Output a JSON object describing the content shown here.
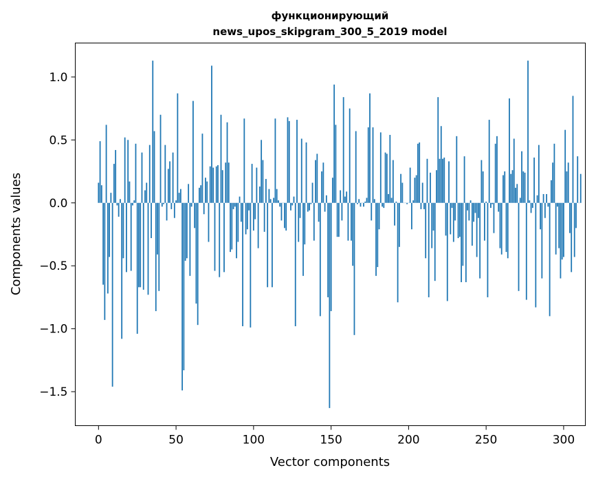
{
  "chart_data": {
    "type": "bar",
    "title_line1": "функционирующий",
    "title_line2": "news_upos_skipgram_300_5_2019 model",
    "xlabel": "Vector components",
    "ylabel": "Components values",
    "xlim": [
      -15,
      314
    ],
    "ylim": [
      -1.77,
      1.27
    ],
    "xticks": [
      0,
      50,
      100,
      150,
      200,
      250,
      300
    ],
    "yticks": [
      -1.5,
      -1.0,
      -0.5,
      0.0,
      0.5,
      1.0
    ],
    "ytick_labels": [
      "−1.5",
      "−1.0",
      "−0.5",
      "0.0",
      "0.5",
      "1.0"
    ],
    "grid": false,
    "bar_color": "#1f77b4",
    "x_start": 0,
    "values": [
      0.16,
      0.49,
      0.14,
      -0.65,
      -0.93,
      0.62,
      -0.72,
      -0.43,
      0.08,
      -1.46,
      0.31,
      0.42,
      -0.02,
      -0.11,
      0.03,
      -1.08,
      -0.44,
      0.52,
      -0.55,
      0.5,
      0.17,
      -0.54,
      -0.02,
      0.02,
      0.47,
      -1.04,
      -0.67,
      -0.67,
      0.4,
      -0.69,
      0.1,
      0.16,
      -0.73,
      0.46,
      -0.28,
      1.13,
      0.57,
      -0.86,
      -0.41,
      -0.7,
      0.7,
      -0.03,
      -0.01,
      0.46,
      -0.14,
      0.27,
      0.33,
      -0.05,
      0.4,
      -0.12,
      0.02,
      0.87,
      0.08,
      0.11,
      -1.49,
      -1.33,
      -0.46,
      -0.44,
      0.15,
      -0.58,
      -0.03,
      0.81,
      -0.2,
      -0.8,
      -0.97,
      0.12,
      0.14,
      0.55,
      -0.09,
      0.2,
      0.17,
      -0.31,
      0.29,
      1.09,
      0.28,
      -0.54,
      0.29,
      0.3,
      -0.59,
      0.7,
      0.26,
      -0.55,
      0.32,
      0.64,
      0.32,
      -0.39,
      -0.37,
      -0.05,
      -0.03,
      -0.44,
      -0.31,
      0.05,
      -0.15,
      -0.98,
      0.67,
      -0.25,
      -0.21,
      -0.06,
      -0.99,
      0.31,
      -0.22,
      -0.13,
      0.28,
      -0.36,
      0.13,
      0.5,
      0.34,
      -0.23,
      0.19,
      -0.67,
      0.11,
      0.03,
      -0.67,
      0.04,
      0.67,
      0.11,
      0.02,
      -0.03,
      -0.14,
      0.0,
      -0.2,
      -0.22,
      0.68,
      0.65,
      -0.06,
      -0.02,
      0.05,
      -0.98,
      0.66,
      -0.31,
      -0.12,
      0.51,
      -0.58,
      -0.33,
      0.48,
      -0.07,
      -0.06,
      -0.01,
      0.16,
      -0.3,
      0.34,
      0.39,
      -0.15,
      -0.9,
      0.25,
      0.32,
      -0.07,
      0.06,
      -0.75,
      -1.63,
      -0.86,
      0.2,
      0.94,
      0.62,
      -0.27,
      -0.27,
      0.1,
      -0.14,
      0.84,
      0.05,
      0.09,
      -0.3,
      0.75,
      -0.3,
      -0.5,
      -1.05,
      0.57,
      -0.01,
      0.03,
      -0.03,
      0.0,
      -0.03,
      0.01,
      0.04,
      0.6,
      0.87,
      -0.14,
      0.6,
      0.03,
      -0.58,
      -0.51,
      -0.21,
      0.56,
      -0.03,
      -0.04,
      0.4,
      0.39,
      0.07,
      0.54,
      0.04,
      0.34,
      -0.18,
      0.01,
      -0.79,
      -0.35,
      0.23,
      0.16,
      0.0,
      0.0,
      -0.01,
      0.0,
      0.28,
      -0.21,
      0.02,
      0.2,
      0.22,
      0.47,
      0.48,
      -0.05,
      0.16,
      -0.05,
      -0.44,
      0.35,
      -0.75,
      0.24,
      -0.36,
      -0.22,
      -0.62,
      0.26,
      0.84,
      0.35,
      0.61,
      0.35,
      0.36,
      -0.26,
      -0.78,
      0.33,
      -0.25,
      -0.04,
      -0.31,
      -0.14,
      0.53,
      -0.28,
      -0.27,
      -0.63,
      -0.5,
      0.37,
      -0.63,
      -0.06,
      -0.14,
      0.02,
      -0.34,
      -0.15,
      -0.08,
      -0.43,
      -0.12,
      -0.6,
      0.34,
      0.25,
      -0.3,
      0.01,
      -0.75,
      0.66,
      -0.04,
      -0.01,
      -0.24,
      0.47,
      0.53,
      -0.07,
      -0.36,
      -0.41,
      0.22,
      0.25,
      -0.39,
      -0.44,
      0.83,
      0.23,
      0.26,
      0.51,
      0.12,
      0.15,
      -0.7,
      0.04,
      0.41,
      0.25,
      0.24,
      -0.77,
      1.13,
      0.02,
      -0.08,
      -0.04,
      0.36,
      -0.83,
      0.06,
      0.46,
      -0.21,
      -0.6,
      0.07,
      -0.12,
      0.07,
      -0.03,
      -0.9,
      0.18,
      0.32,
      0.47,
      -0.41,
      -0.03,
      -0.36,
      -0.6,
      -0.45,
      -0.43,
      0.58,
      0.25,
      0.32,
      -0.24,
      -0.55,
      0.85,
      -0.43,
      -0.2,
      0.37,
      0.0,
      0.23
    ]
  }
}
